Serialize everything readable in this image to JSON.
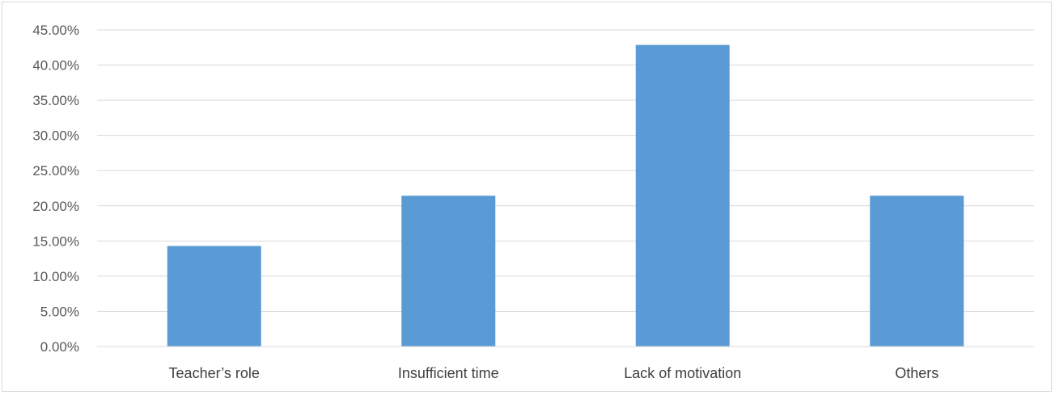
{
  "chart_data": {
    "type": "bar",
    "title": "",
    "xlabel": "",
    "ylabel": "",
    "categories": [
      "Teacher’s role",
      "Insufficient time",
      "Lack of motivation",
      "Others"
    ],
    "values": [
      14.29,
      21.43,
      42.86,
      21.43
    ],
    "ylim": [
      0,
      45
    ],
    "ytick_step": 5,
    "ytick_labels": [
      "0.00%",
      "5.00%",
      "10.00%",
      "15.00%",
      "20.00%",
      "25.00%",
      "30.00%",
      "35.00%",
      "40.00%",
      "45.00%"
    ],
    "grid": true,
    "legend": "none",
    "bar_color": "#5b9bd5",
    "grid_color": "#d9d9d9"
  }
}
